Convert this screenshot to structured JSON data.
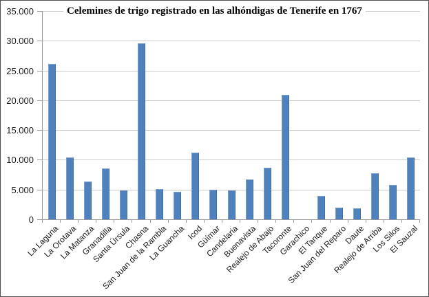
{
  "window": {
    "background_color": "#ffffff",
    "frame_border_color": "#4d4d4d"
  },
  "chart_data": {
    "type": "bar",
    "title": "Celemines de trigo registrado en las alhóndigas de Tenerife en 1767",
    "xlabel": "",
    "ylabel": "",
    "legend": "none",
    "grid": "horizontal",
    "ylim": [
      0,
      35000
    ],
    "ytick_step": 5000,
    "ytick_labels": [
      "0",
      "5.000",
      "10.000",
      "15.000",
      "20.000",
      "25.000",
      "30.000",
      "35.000"
    ],
    "categories": [
      "La Laguna",
      "La Orotava",
      "La Matanza",
      "Granadilla",
      "Santa Úrsula",
      "Chasna",
      "San Juan de la Rambla",
      "La Guancha",
      "Icod",
      "Güímar",
      "Candelaria",
      "Buenavista",
      "Realejo de Abajo",
      "Tacoronte",
      "Garachico",
      "El Tanque",
      "San Juan del Reparo",
      "Daute",
      "Realejo de Arriba",
      "Los Silos",
      "El Sauzal"
    ],
    "values": [
      26100,
      10400,
      6400,
      8550,
      4800,
      29600,
      5050,
      4600,
      11200,
      5000,
      4900,
      6700,
      8650,
      20900,
      0,
      3950,
      1950,
      1850,
      7700,
      5800,
      10350
    ],
    "bar_color": "#4f81bd",
    "bar_edge_light": "#7b9fd0",
    "bar_edge_dark": "#426d9f",
    "gridline_color": "#c9c9c9",
    "axis_color": "#999999",
    "text_color": "#1a1a1a"
  }
}
